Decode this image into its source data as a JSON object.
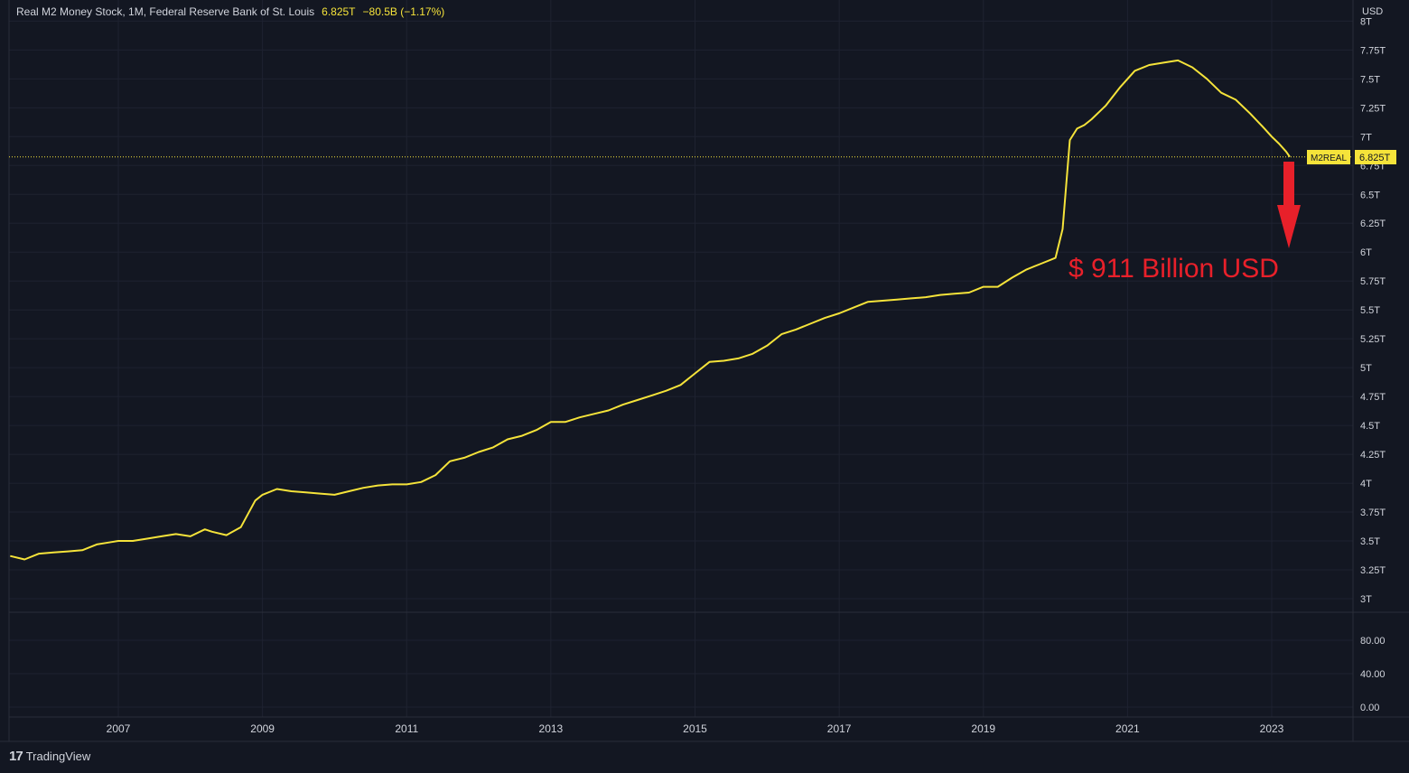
{
  "header": {
    "title": "Real M2 Money Stock, 1M, Federal Reserve Bank of St. Louis",
    "last_value": "6.825T",
    "change": "−80.5B (−1.17%)"
  },
  "currency_label": "USD",
  "price_tag": {
    "symbol": "M2REAL",
    "value": "6.825T"
  },
  "annotation_text": "$ 911 Billion USD",
  "brand": "TradingView",
  "colors": {
    "background": "#131722",
    "line": "#f5e33a",
    "annotation": "#e8202a",
    "grid": "#1e2230"
  },
  "chart_data": {
    "type": "line",
    "title": "Real M2 Money Stock",
    "xlabel": "",
    "ylabel": "",
    "units": "USD trillions",
    "x_ticks": [
      "2007",
      "2009",
      "2011",
      "2013",
      "2015",
      "2017",
      "2019",
      "2021",
      "2023"
    ],
    "y_ticks": [
      "3T",
      "3.25T",
      "3.5T",
      "3.75T",
      "4T",
      "4.25T",
      "4.5T",
      "4.75T",
      "5T",
      "5.25T",
      "5.5T",
      "5.75T",
      "6T",
      "6.25T",
      "6.5T",
      "6.75T",
      "7T",
      "7.25T",
      "7.5T",
      "7.75T",
      "8T"
    ],
    "y_tick_values": [
      3,
      3.25,
      3.5,
      3.75,
      4,
      4.25,
      4.5,
      4.75,
      5,
      5.25,
      5.5,
      5.75,
      6,
      6.25,
      6.5,
      6.75,
      7,
      7.25,
      7.5,
      7.75,
      8
    ],
    "ylim": [
      2.95,
      8.05
    ],
    "xlim": [
      2005.5,
      2024.15
    ],
    "lower_pane_ticks": [
      "80.00",
      "40.00",
      "0.00"
    ],
    "reference_line": 6.825,
    "series": [
      {
        "x": [
          2005.5,
          2005.7,
          2005.9,
          2006.1,
          2006.3,
          2006.5,
          2006.7,
          2006.9,
          2007.0,
          2007.2,
          2007.4,
          2007.6,
          2007.8,
          2008.0,
          2008.2,
          2008.3,
          2008.5,
          2008.7,
          2008.9,
          2009.0,
          2009.2,
          2009.4,
          2009.6,
          2009.8,
          2010.0,
          2010.2,
          2010.4,
          2010.6,
          2010.8,
          2011.0,
          2011.2,
          2011.4,
          2011.6,
          2011.8,
          2012.0,
          2012.2,
          2012.4,
          2012.6,
          2012.8,
          2013.0,
          2013.2,
          2013.4,
          2013.6,
          2013.8,
          2014.0,
          2014.2,
          2014.4,
          2014.6,
          2014.8,
          2015.0,
          2015.2,
          2015.4,
          2015.6,
          2015.8,
          2016.0,
          2016.2,
          2016.4,
          2016.6,
          2016.8,
          2017.0,
          2017.2,
          2017.4,
          2017.6,
          2017.8,
          2018.0,
          2018.2,
          2018.4,
          2018.6,
          2018.8,
          2019.0,
          2019.2,
          2019.4,
          2019.6,
          2019.8,
          2020.0,
          2020.1,
          2020.2,
          2020.3,
          2020.4,
          2020.5,
          2020.7,
          2020.9,
          2021.1,
          2021.3,
          2021.5,
          2021.7,
          2021.9,
          2022.1,
          2022.3,
          2022.5,
          2022.7,
          2022.9,
          2023.0,
          2023.1,
          2023.2,
          2023.25
        ],
        "values": [
          3.37,
          3.34,
          3.39,
          3.4,
          3.41,
          3.42,
          3.47,
          3.49,
          3.5,
          3.5,
          3.52,
          3.54,
          3.56,
          3.54,
          3.6,
          3.58,
          3.55,
          3.62,
          3.85,
          3.9,
          3.95,
          3.93,
          3.92,
          3.91,
          3.9,
          3.93,
          3.96,
          3.98,
          3.99,
          3.99,
          4.01,
          4.07,
          4.19,
          4.22,
          4.27,
          4.31,
          4.38,
          4.41,
          4.46,
          4.53,
          4.53,
          4.57,
          4.6,
          4.63,
          4.68,
          4.72,
          4.76,
          4.8,
          4.85,
          4.95,
          5.05,
          5.06,
          5.08,
          5.12,
          5.19,
          5.29,
          5.33,
          5.38,
          5.43,
          5.47,
          5.52,
          5.57,
          5.58,
          5.59,
          5.6,
          5.61,
          5.63,
          5.64,
          5.65,
          5.7,
          5.7,
          5.78,
          5.85,
          5.9,
          5.95,
          6.2,
          6.97,
          7.07,
          7.1,
          7.15,
          7.27,
          7.43,
          7.57,
          7.62,
          7.64,
          7.66,
          7.6,
          7.5,
          7.38,
          7.32,
          7.2,
          7.07,
          7.0,
          6.94,
          6.87,
          6.825
        ]
      }
    ]
  }
}
